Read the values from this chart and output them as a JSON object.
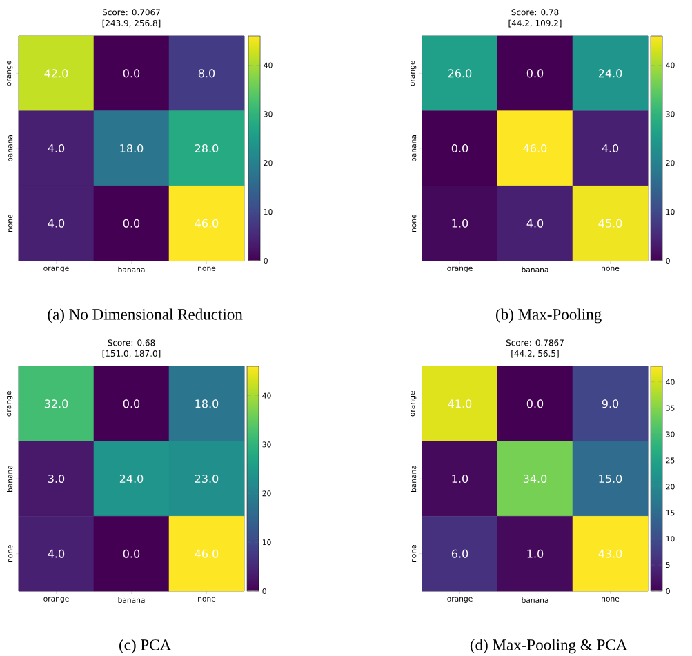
{
  "chart_data": [
    {
      "type": "heatmap",
      "title": "Score: 0.7067",
      "subtitle": "[243.9, 256.8]",
      "categories": [
        "orange",
        "banana",
        "none"
      ],
      "y_categories": [
        "orange",
        "banana",
        "none"
      ],
      "cells": [
        [
          42,
          0,
          8
        ],
        [
          4,
          18,
          28
        ],
        [
          4,
          0,
          46
        ]
      ],
      "cell_labels": [
        [
          "42.0",
          "0.0",
          "8.0"
        ],
        [
          "4.0",
          "18.0",
          "28.0"
        ],
        [
          "4.0",
          "0.0",
          "46.0"
        ]
      ],
      "clim": [
        0,
        46
      ],
      "cticks": [
        0,
        10,
        20,
        30,
        40
      ],
      "annotations": [
        "(a) No Dimensional Reduction"
      ]
    },
    {
      "type": "heatmap",
      "title": "Score: 0.78",
      "subtitle": "[44.2, 109.2]",
      "categories": [
        "orange",
        "banana",
        "none"
      ],
      "y_categories": [
        "orange",
        "banana",
        "none"
      ],
      "cells": [
        [
          26,
          0,
          24
        ],
        [
          0,
          46,
          4
        ],
        [
          1,
          4,
          45
        ]
      ],
      "cell_labels": [
        [
          "26.0",
          "0.0",
          "24.0"
        ],
        [
          "0.0",
          "46.0",
          "4.0"
        ],
        [
          "1.0",
          "4.0",
          "45.0"
        ]
      ],
      "clim": [
        0,
        46
      ],
      "cticks": [
        0,
        10,
        20,
        30,
        40
      ],
      "annotations": [
        "(b) Max-Pooling"
      ]
    },
    {
      "type": "heatmap",
      "title": "Score: 0.68",
      "subtitle": "[151.0, 187.0]",
      "categories": [
        "orange",
        "banana",
        "none"
      ],
      "y_categories": [
        "orange",
        "banana",
        "none"
      ],
      "cells": [
        [
          32,
          0,
          18
        ],
        [
          3,
          24,
          23
        ],
        [
          4,
          0,
          46
        ]
      ],
      "cell_labels": [
        [
          "32.0",
          "0.0",
          "18.0"
        ],
        [
          "3.0",
          "24.0",
          "23.0"
        ],
        [
          "4.0",
          "0.0",
          "46.0"
        ]
      ],
      "clim": [
        0,
        46
      ],
      "cticks": [
        0,
        10,
        20,
        30,
        40
      ],
      "annotations": [
        "(c) PCA"
      ]
    },
    {
      "type": "heatmap",
      "title": "Score: 0.7867",
      "subtitle": "[44.2, 56.5]",
      "categories": [
        "orange",
        "banana",
        "none"
      ],
      "y_categories": [
        "orange",
        "banana",
        "none"
      ],
      "cells": [
        [
          41,
          0,
          9
        ],
        [
          1,
          34,
          15
        ],
        [
          6,
          1,
          43
        ]
      ],
      "cell_labels": [
        [
          "41.0",
          "0.0",
          "9.0"
        ],
        [
          "1.0",
          "34.0",
          "15.0"
        ],
        [
          "6.0",
          "1.0",
          "43.0"
        ]
      ],
      "clim": [
        0,
        43
      ],
      "cticks": [
        0,
        5,
        10,
        15,
        20,
        25,
        30,
        35,
        40
      ],
      "annotations": [
        "(d) Max-Pooling & PCA"
      ]
    }
  ]
}
